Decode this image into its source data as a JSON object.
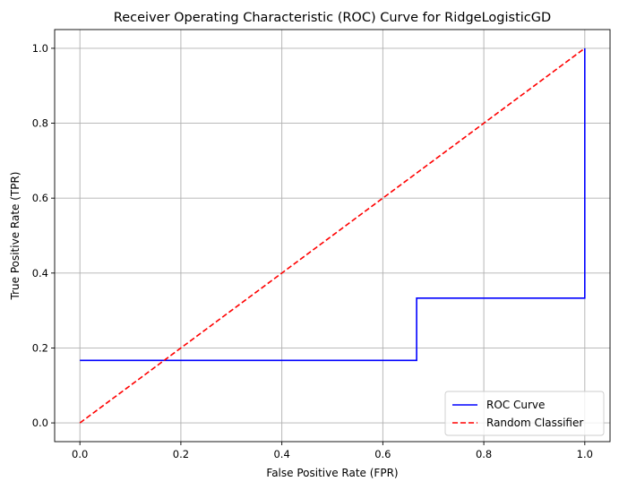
{
  "chart_data": {
    "type": "line",
    "title": "Receiver Operating Characteristic (ROC) Curve for RidgeLogisticGD",
    "xlabel": "False Positive Rate (FPR)",
    "ylabel": "True Positive Rate (TPR)",
    "xlim": [
      -0.05,
      1.05
    ],
    "ylim": [
      -0.05,
      1.05
    ],
    "xticks": [
      0.0,
      0.2,
      0.4,
      0.6,
      0.8,
      1.0
    ],
    "xtick_labels": [
      "0.0",
      "0.2",
      "0.4",
      "0.6",
      "0.8",
      "1.0"
    ],
    "yticks": [
      0.0,
      0.2,
      0.4,
      0.6,
      0.8,
      1.0
    ],
    "ytick_labels": [
      "0.0",
      "0.2",
      "0.4",
      "0.6",
      "0.8",
      "1.0"
    ],
    "grid": true,
    "legend_position": "bottom-right",
    "series": [
      {
        "name": "ROC Curve",
        "color": "#0000ff",
        "style": "solid",
        "x": [
          0.0,
          0.667,
          0.667,
          1.0,
          1.0
        ],
        "y": [
          0.167,
          0.167,
          0.333,
          0.333,
          1.0
        ]
      },
      {
        "name": "Random Classifier",
        "color": "#ff0000",
        "style": "dashed",
        "x": [
          0.0,
          1.0
        ],
        "y": [
          0.0,
          1.0
        ]
      }
    ]
  }
}
